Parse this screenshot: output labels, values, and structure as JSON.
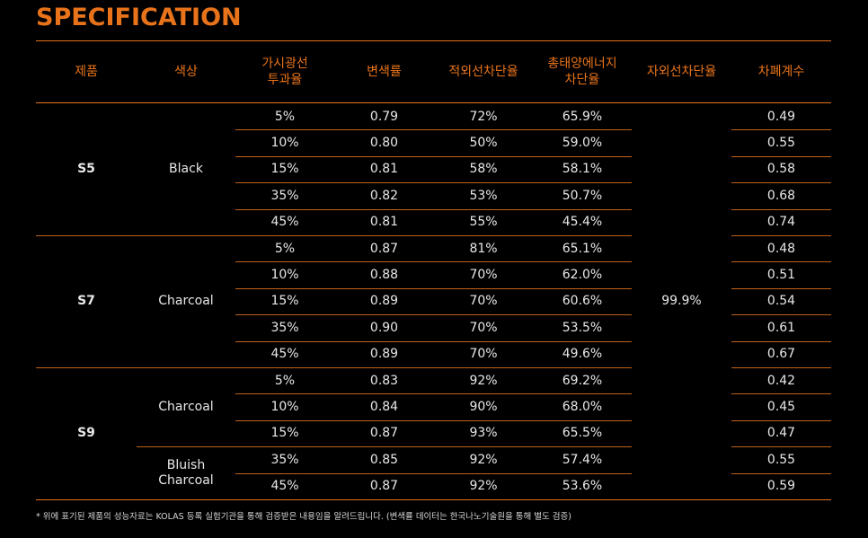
{
  "title": "SPECIFICATION",
  "headers": {
    "product": "제품",
    "color": "색상",
    "vlt": "가시광선\n투과율",
    "change": "변색률",
    "ir": "적외선차단율",
    "tser": "총태양에너지\n차단율",
    "uv": "자외선차단율",
    "shading": "차폐계수"
  },
  "groups": [
    {
      "product": "S5",
      "color": "Black"
    },
    {
      "product": "S7",
      "color": "Charcoal"
    },
    {
      "product": "S9",
      "color": "Charcoal",
      "color2": "Bluish\nCharcoal"
    }
  ],
  "uv_value": "99.9%",
  "rows": [
    {
      "vlt": "5%",
      "change": "0.79",
      "ir": "72%",
      "tser": "65.9%",
      "sc": "0.49"
    },
    {
      "vlt": "10%",
      "change": "0.80",
      "ir": "50%",
      "tser": "59.0%",
      "sc": "0.55"
    },
    {
      "vlt": "15%",
      "change": "0.81",
      "ir": "58%",
      "tser": "58.1%",
      "sc": "0.58"
    },
    {
      "vlt": "35%",
      "change": "0.82",
      "ir": "53%",
      "tser": "50.7%",
      "sc": "0.68"
    },
    {
      "vlt": "45%",
      "change": "0.81",
      "ir": "55%",
      "tser": "45.4%",
      "sc": "0.74"
    },
    {
      "vlt": "5%",
      "change": "0.87",
      "ir": "81%",
      "tser": "65.1%",
      "sc": "0.48"
    },
    {
      "vlt": "10%",
      "change": "0.88",
      "ir": "70%",
      "tser": "62.0%",
      "sc": "0.51"
    },
    {
      "vlt": "15%",
      "change": "0.89",
      "ir": "70%",
      "tser": "60.6%",
      "sc": "0.54"
    },
    {
      "vlt": "35%",
      "change": "0.90",
      "ir": "70%",
      "tser": "53.5%",
      "sc": "0.61"
    },
    {
      "vlt": "45%",
      "change": "0.89",
      "ir": "70%",
      "tser": "49.6%",
      "sc": "0.67"
    },
    {
      "vlt": "5%",
      "change": "0.83",
      "ir": "92%",
      "tser": "69.2%",
      "sc": "0.42"
    },
    {
      "vlt": "10%",
      "change": "0.84",
      "ir": "90%",
      "tser": "68.0%",
      "sc": "0.45"
    },
    {
      "vlt": "15%",
      "change": "0.87",
      "ir": "93%",
      "tser": "65.5%",
      "sc": "0.47"
    },
    {
      "vlt": "35%",
      "change": "0.85",
      "ir": "92%",
      "tser": "57.4%",
      "sc": "0.55"
    },
    {
      "vlt": "45%",
      "change": "0.87",
      "ir": "92%",
      "tser": "53.6%",
      "sc": "0.59"
    }
  ],
  "footnote": "* 위에 표기된 제품의 성능자료는 KOLAS 등록 실험기관을 통해 검증받은 내용임을 알려드립니다. (변색률 데이터는 한국나노기술원을 통해 별도 검증)",
  "colors": {
    "accent": "#e8731a",
    "background": "#000000",
    "text": "#e8e8e8"
  }
}
